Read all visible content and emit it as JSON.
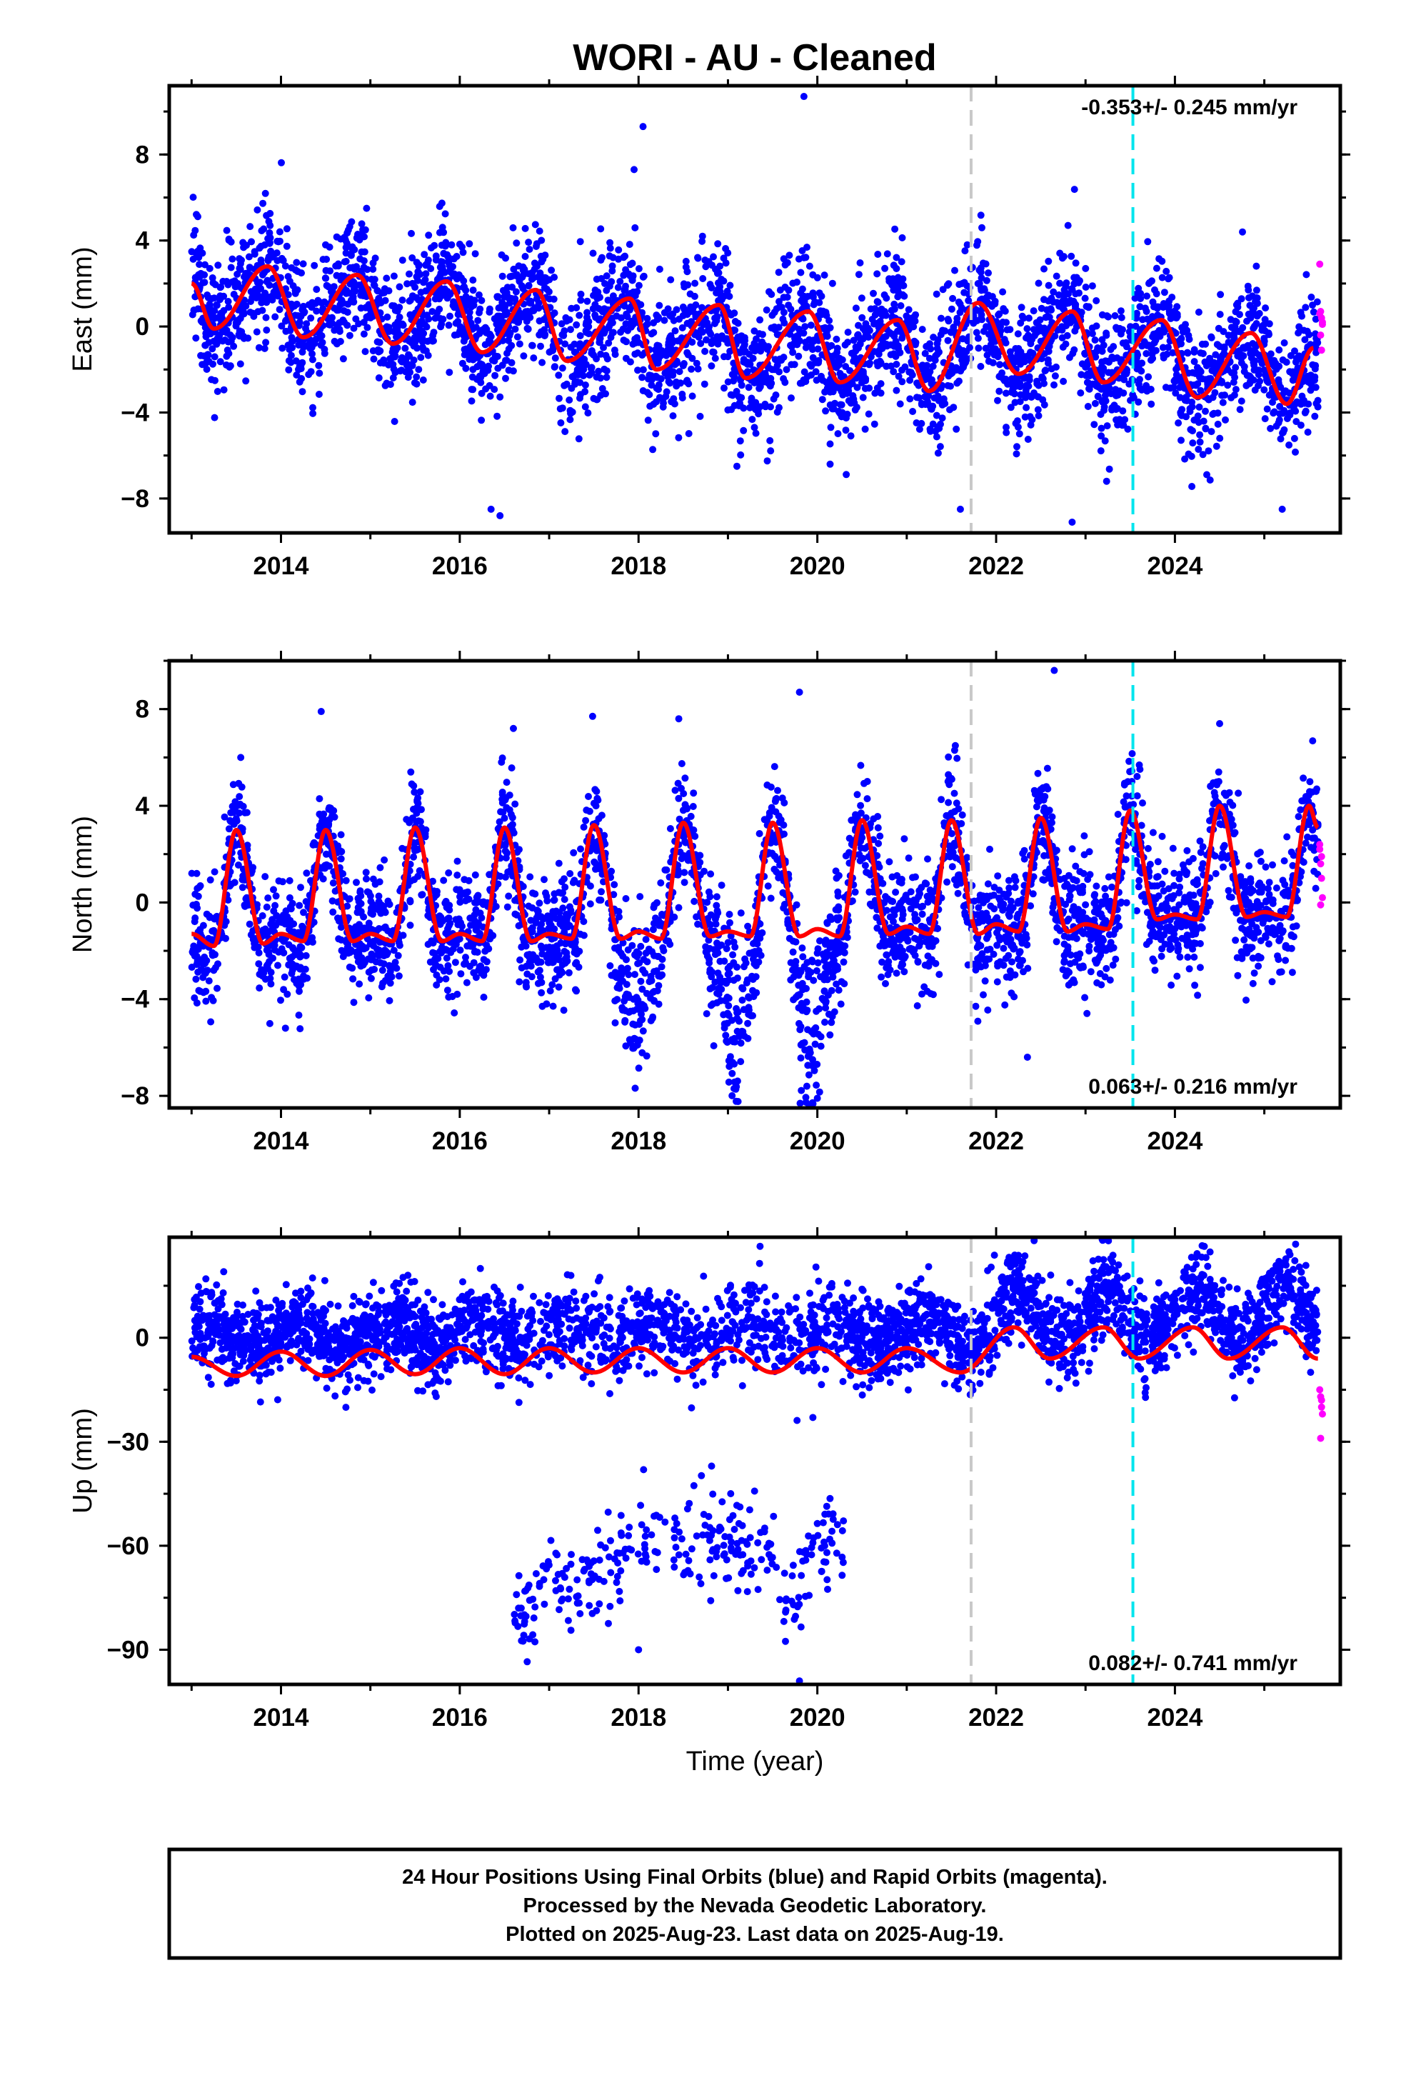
{
  "title": "WORI  - AU - Cleaned",
  "xlabel": "Time (year)",
  "footer": {
    "line1": "24 Hour Positions Using Final Orbits (blue) and Rapid Orbits (magenta).",
    "line2": "Processed by the Nevada Geodetic Laboratory.",
    "line3": "Plotted on 2025-Aug-23. Last data on 2025-Aug-19."
  },
  "colors": {
    "final": "#0000ff",
    "rapid": "#ff00ff",
    "model": "#ff0000",
    "event_gray": "#c8c8c8",
    "event_cyan": "#00e5ee"
  },
  "chart_data": [
    {
      "type": "scatter",
      "name": "east",
      "ylabel": "East (mm)",
      "rate": "-0.353+/- 0.245 mm/yr",
      "rate_position": "top-right",
      "xlim": [
        2012.75,
        2025.85
      ],
      "ylim": [
        -9.6,
        11.2
      ],
      "xticks": [
        2014,
        2016,
        2018,
        2020,
        2022,
        2024
      ],
      "yticks": [
        -8,
        -4,
        0,
        4,
        8
      ],
      "event_lines": [
        {
          "x": 2021.72,
          "color": "gray"
        },
        {
          "x": 2023.53,
          "color": "cyan"
        }
      ],
      "model": {
        "annual_amplitude": 1.9,
        "annual_peak": 0.85,
        "semiannual_amplitude": 0.55,
        "offset_2013": 1.0,
        "trend_per_year": -0.18,
        "points": [
          [
            2013.0,
            2.0
          ],
          [
            2013.25,
            -0.1
          ],
          [
            2013.85,
            2.8
          ],
          [
            2014.25,
            -0.5
          ],
          [
            2014.85,
            2.4
          ],
          [
            2015.25,
            -0.8
          ],
          [
            2015.85,
            2.1
          ],
          [
            2016.25,
            -1.2
          ],
          [
            2016.85,
            1.7
          ],
          [
            2017.2,
            -1.6
          ],
          [
            2017.9,
            1.3
          ],
          [
            2018.2,
            -2.0
          ],
          [
            2018.9,
            1.0
          ],
          [
            2019.2,
            -2.4
          ],
          [
            2019.9,
            0.7
          ],
          [
            2020.25,
            -2.6
          ],
          [
            2020.9,
            0.3
          ],
          [
            2021.25,
            -3.0
          ],
          [
            2021.8,
            1.1
          ],
          [
            2022.25,
            -2.2
          ],
          [
            2022.85,
            0.7
          ],
          [
            2023.2,
            -2.6
          ],
          [
            2023.85,
            0.3
          ],
          [
            2024.25,
            -3.3
          ],
          [
            2024.85,
            -0.3
          ],
          [
            2025.25,
            -3.6
          ],
          [
            2025.55,
            -1.0
          ]
        ]
      },
      "scatter_model": {
        "n": 3600,
        "sigma": 1.5,
        "extra_noise": "seasonal",
        "outlier_points": [
          [
            2019.85,
            10.7
          ],
          [
            2018.05,
            9.3
          ],
          [
            2017.95,
            7.3
          ],
          [
            2016.35,
            -8.5
          ],
          [
            2016.45,
            -8.8
          ],
          [
            2022.85,
            -9.1
          ],
          [
            2019.1,
            -6.5
          ],
          [
            2021.6,
            -8.5
          ],
          [
            2025.2,
            -8.5
          ]
        ]
      },
      "rapid_points": [
        [
          2025.62,
          2.9
        ],
        [
          2025.63,
          0.7
        ],
        [
          2025.64,
          0.4
        ],
        [
          2025.65,
          0.1
        ],
        [
          2025.63,
          -0.4
        ],
        [
          2025.64,
          -1.1
        ],
        [
          2025.65,
          0.2
        ],
        [
          2025.62,
          0.6
        ]
      ]
    },
    {
      "type": "scatter",
      "name": "north",
      "ylabel": "North (mm)",
      "rate": "0.063+/- 0.216 mm/yr",
      "rate_position": "bottom-right",
      "xlim": [
        2012.75,
        2025.85
      ],
      "ylim": [
        -8.5,
        10.0
      ],
      "xticks": [
        2014,
        2016,
        2018,
        2020,
        2022,
        2024
      ],
      "yticks": [
        -8,
        -4,
        0,
        4,
        8
      ],
      "event_lines": [
        {
          "x": 2021.72,
          "color": "gray"
        },
        {
          "x": 2023.53,
          "color": "cyan"
        }
      ],
      "model": {
        "points": [
          [
            2013.0,
            -1.3
          ],
          [
            2013.25,
            -1.8
          ],
          [
            2013.5,
            3.0
          ],
          [
            2013.8,
            -1.7
          ],
          [
            2014.0,
            -1.3
          ],
          [
            2014.25,
            -1.6
          ],
          [
            2014.5,
            3.0
          ],
          [
            2014.8,
            -1.6
          ],
          [
            2015.0,
            -1.3
          ],
          [
            2015.25,
            -1.6
          ],
          [
            2015.5,
            3.1
          ],
          [
            2015.8,
            -1.6
          ],
          [
            2016.0,
            -1.3
          ],
          [
            2016.25,
            -1.6
          ],
          [
            2016.5,
            3.1
          ],
          [
            2016.8,
            -1.6
          ],
          [
            2017.0,
            -1.3
          ],
          [
            2017.25,
            -1.5
          ],
          [
            2017.5,
            3.2
          ],
          [
            2017.8,
            -1.5
          ],
          [
            2018.0,
            -1.2
          ],
          [
            2018.25,
            -1.5
          ],
          [
            2018.5,
            3.3
          ],
          [
            2018.8,
            -1.4
          ],
          [
            2019.0,
            -1.2
          ],
          [
            2019.25,
            -1.4
          ],
          [
            2019.5,
            3.3
          ],
          [
            2019.8,
            -1.4
          ],
          [
            2020.0,
            -1.1
          ],
          [
            2020.25,
            -1.4
          ],
          [
            2020.5,
            3.4
          ],
          [
            2020.8,
            -1.3
          ],
          [
            2021.0,
            -1.0
          ],
          [
            2021.25,
            -1.3
          ],
          [
            2021.5,
            3.4
          ],
          [
            2021.8,
            -1.3
          ],
          [
            2022.0,
            -0.9
          ],
          [
            2022.25,
            -1.2
          ],
          [
            2022.5,
            3.5
          ],
          [
            2022.8,
            -1.2
          ],
          [
            2023.0,
            -0.9
          ],
          [
            2023.25,
            -1.1
          ],
          [
            2023.5,
            3.8
          ],
          [
            2023.8,
            -0.7
          ],
          [
            2024.0,
            -0.5
          ],
          [
            2024.25,
            -0.7
          ],
          [
            2024.5,
            4.0
          ],
          [
            2024.8,
            -0.6
          ],
          [
            2025.0,
            -0.4
          ],
          [
            2025.25,
            -0.6
          ],
          [
            2025.5,
            4.0
          ],
          [
            2025.6,
            3.1
          ]
        ]
      },
      "scatter_model": {
        "n": 3600,
        "sigma": 1.2,
        "dips": [
          [
            2018.0,
            -4.0
          ],
          [
            2019.1,
            -5.5
          ],
          [
            2019.95,
            -5.5
          ]
        ],
        "outlier_points": [
          [
            2019.8,
            8.7
          ],
          [
            2022.65,
            9.6
          ],
          [
            2014.45,
            7.9
          ],
          [
            2016.6,
            7.2
          ],
          [
            2013.55,
            6.0
          ],
          [
            2018.45,
            7.6
          ],
          [
            2024.5,
            7.4
          ],
          [
            2014.05,
            -5.2
          ],
          [
            2020.0,
            -8.1
          ],
          [
            2022.35,
            -6.4
          ]
        ]
      },
      "rapid_points": [
        [
          2025.62,
          2.4
        ],
        [
          2025.63,
          1.6
        ],
        [
          2025.64,
          1.0
        ],
        [
          2025.65,
          0.2
        ],
        [
          2025.63,
          -0.1
        ],
        [
          2025.64,
          1.9
        ],
        [
          2025.62,
          2.2
        ]
      ]
    },
    {
      "type": "scatter",
      "name": "up",
      "ylabel": "Up (mm)",
      "rate": "0.082+/- 0.741 mm/yr",
      "rate_position": "bottom-right",
      "xlim": [
        2012.75,
        2025.85
      ],
      "ylim": [
        -100,
        29
      ],
      "xticks": [
        2014,
        2016,
        2018,
        2020,
        2022,
        2024
      ],
      "yticks": [
        -90,
        -60,
        -30,
        0
      ],
      "event_lines": [
        {
          "x": 2021.72,
          "color": "gray"
        },
        {
          "x": 2023.53,
          "color": "cyan"
        }
      ],
      "model": {
        "annual_amplitude": 4.0,
        "annual_peak": 0.15,
        "points": [
          [
            2013.0,
            -5.5
          ],
          [
            2013.5,
            -11.0
          ],
          [
            2014.0,
            -4.0
          ],
          [
            2014.5,
            -11.0
          ],
          [
            2015.0,
            -3.5
          ],
          [
            2015.5,
            -10.5
          ],
          [
            2016.0,
            -3.0
          ],
          [
            2016.5,
            -10.5
          ],
          [
            2017.0,
            -3.0
          ],
          [
            2017.5,
            -10.0
          ],
          [
            2018.0,
            -3.0
          ],
          [
            2018.5,
            -10.0
          ],
          [
            2019.0,
            -3.0
          ],
          [
            2019.5,
            -10.0
          ],
          [
            2020.0,
            -3.0
          ],
          [
            2020.5,
            -10.0
          ],
          [
            2021.0,
            -3.0
          ],
          [
            2021.6,
            -10.0
          ],
          [
            2022.2,
            3.0
          ],
          [
            2022.6,
            -6.0
          ],
          [
            2023.2,
            3.0
          ],
          [
            2023.6,
            -6.0
          ],
          [
            2024.2,
            3.0
          ],
          [
            2024.6,
            -6.0
          ],
          [
            2025.2,
            3.0
          ],
          [
            2025.6,
            -6.0
          ]
        ]
      },
      "scatter_model": {
        "n": 3600,
        "sigma": 6.0,
        "offset_cluster": [
          [
            2016.7,
            -80
          ],
          [
            2017.0,
            -72
          ],
          [
            2017.9,
            -65
          ],
          [
            2018.05,
            -60
          ],
          [
            2019.0,
            -58
          ],
          [
            2019.4,
            -63
          ],
          [
            2019.7,
            -75
          ],
          [
            2019.95,
            -65
          ],
          [
            2020.15,
            -60
          ]
        ],
        "outlier_points": [
          [
            2025.35,
            27
          ],
          [
            2019.8,
            -99
          ],
          [
            2019.95,
            -23
          ],
          [
            2018.0,
            -90
          ]
        ]
      },
      "rapid_points": [
        [
          2025.62,
          -15
        ],
        [
          2025.63,
          -17
        ],
        [
          2025.64,
          -20
        ],
        [
          2025.65,
          -22
        ],
        [
          2025.63,
          -29
        ],
        [
          2025.64,
          -18
        ]
      ]
    }
  ]
}
